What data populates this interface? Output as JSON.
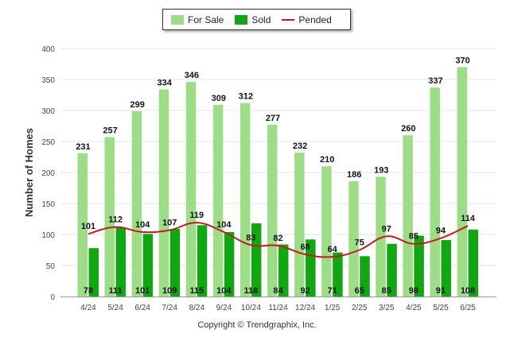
{
  "legend": {
    "for_sale": "For Sale",
    "sold": "Sold",
    "pended": "Pended"
  },
  "colors": {
    "for_sale": "#9ddd88",
    "sold": "#13a613",
    "pended": "#c41a1a",
    "grid": "#e6e6e6",
    "axis_text": "#444444"
  },
  "copyright": "Copyright © Trendgraphix, Inc.",
  "chart_data": {
    "type": "bar",
    "title": "",
    "xlabel": "",
    "ylabel": "Number of Homes",
    "ylim": [
      0,
      400
    ],
    "yticks": [
      0,
      50,
      100,
      150,
      200,
      250,
      300,
      350,
      400
    ],
    "grid": true,
    "legend_position": "top-center",
    "categories": [
      "4/24",
      "5/24",
      "6/24",
      "7/24",
      "8/24",
      "9/24",
      "10/24",
      "11/24",
      "12/24",
      "1/25",
      "2/25",
      "3/25",
      "4/25",
      "5/25",
      "6/25"
    ],
    "series": [
      {
        "name": "For Sale",
        "type": "bar",
        "values": [
          231,
          257,
          299,
          334,
          346,
          309,
          312,
          277,
          232,
          210,
          186,
          193,
          260,
          337,
          370
        ]
      },
      {
        "name": "Sold",
        "type": "bar",
        "values": [
          78,
          111,
          101,
          109,
          115,
          104,
          118,
          84,
          92,
          71,
          65,
          85,
          98,
          91,
          108
        ]
      },
      {
        "name": "Pended",
        "type": "line",
        "values": [
          101,
          112,
          104,
          107,
          119,
          104,
          83,
          82,
          68,
          64,
          75,
          97,
          85,
          94,
          114
        ]
      }
    ]
  }
}
